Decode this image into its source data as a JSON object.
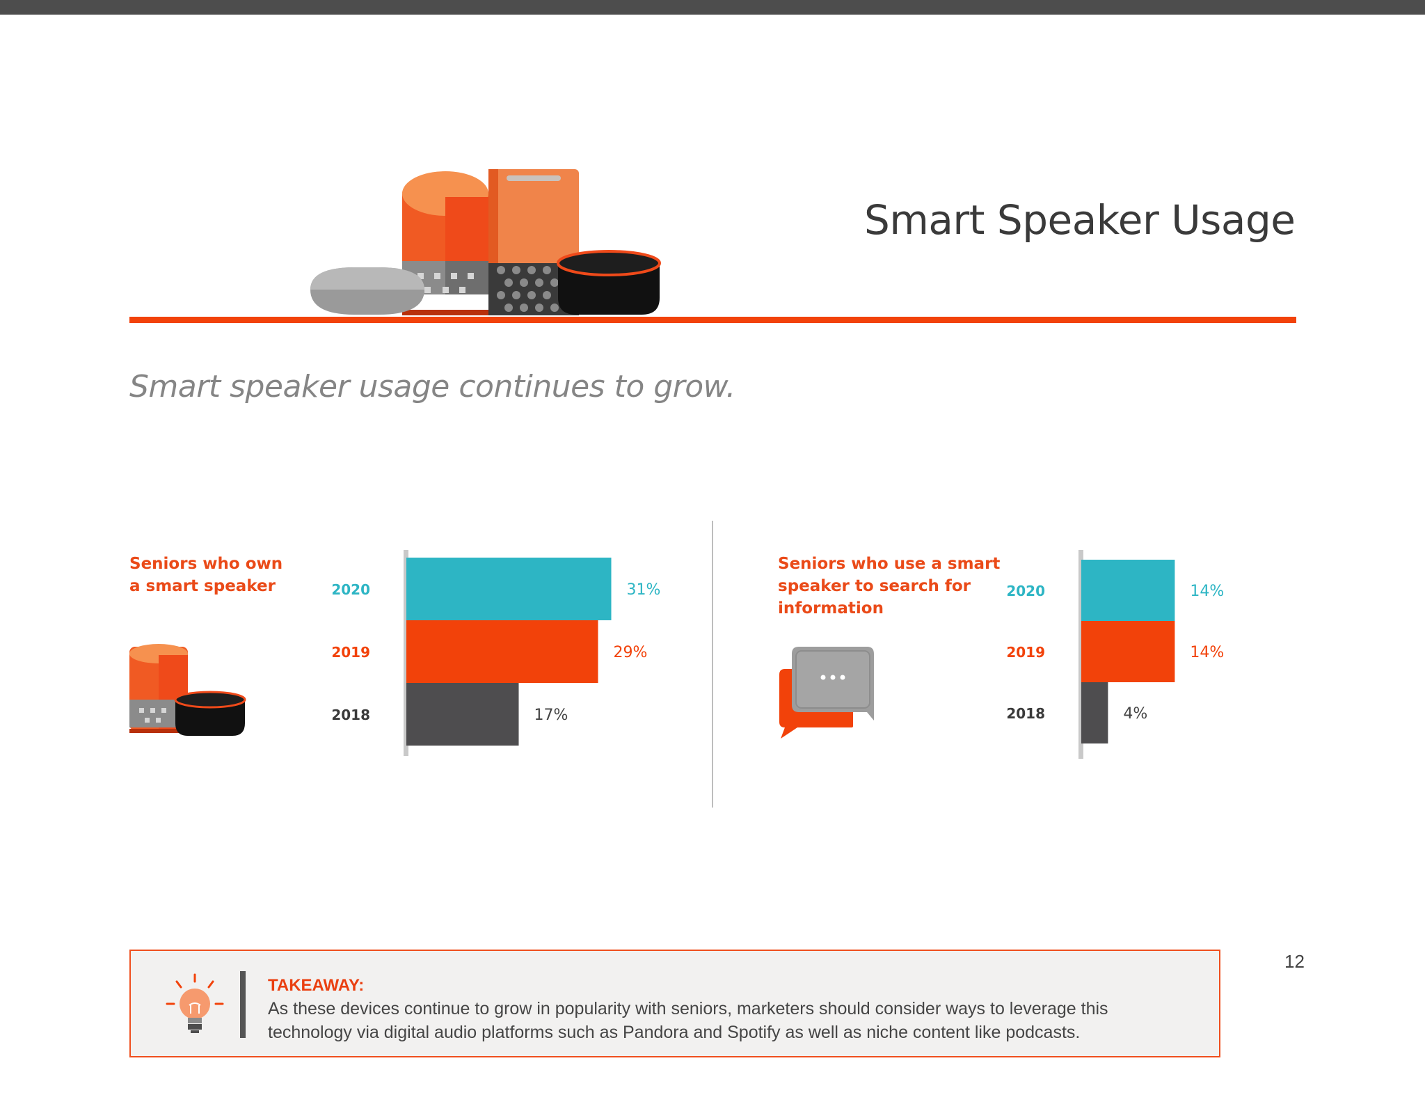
{
  "page": {
    "title": "Smart Speaker Usage",
    "subtitle": "Smart speaker usage continues to grow.",
    "page_number": "12"
  },
  "colors": {
    "accent_orange": "#f2420a",
    "teal": "#2db5c4",
    "dark_gray": "#4e4d4f",
    "label_orange": "#ea4a18"
  },
  "icons": [
    "smart-speakers-illustration",
    "speaker-pair-icon",
    "chat-bubbles-icon",
    "lightbulb-icon"
  ],
  "chart_data": [
    {
      "type": "bar",
      "orientation": "horizontal",
      "title_lines": [
        "Seniors who own",
        "a smart speaker"
      ],
      "categories": [
        "2020",
        "2019",
        "2018"
      ],
      "values": [
        31,
        29,
        17
      ],
      "value_labels": [
        "31%",
        "29%",
        "17%"
      ],
      "bar_colors": [
        "#2db5c4",
        "#f2420a",
        "#4e4d4f"
      ],
      "unit": "%"
    },
    {
      "type": "bar",
      "orientation": "horizontal",
      "title_lines": [
        "Seniors who use a smart",
        "speaker to search for",
        "information"
      ],
      "categories": [
        "2020",
        "2019",
        "2018"
      ],
      "values": [
        14,
        14,
        4
      ],
      "value_labels": [
        "14%",
        "14%",
        "4%"
      ],
      "bar_colors": [
        "#2db5c4",
        "#f2420a",
        "#4e4d4f"
      ],
      "unit": "%"
    }
  ],
  "takeaway": {
    "heading": "TAKEAWAY:",
    "lines": [
      "As these devices continue to grow in popularity with seniors, marketers should consider ways to leverage this",
      "technology via digital audio platforms such as Pandora and Spotify as well as niche content like podcasts."
    ]
  }
}
